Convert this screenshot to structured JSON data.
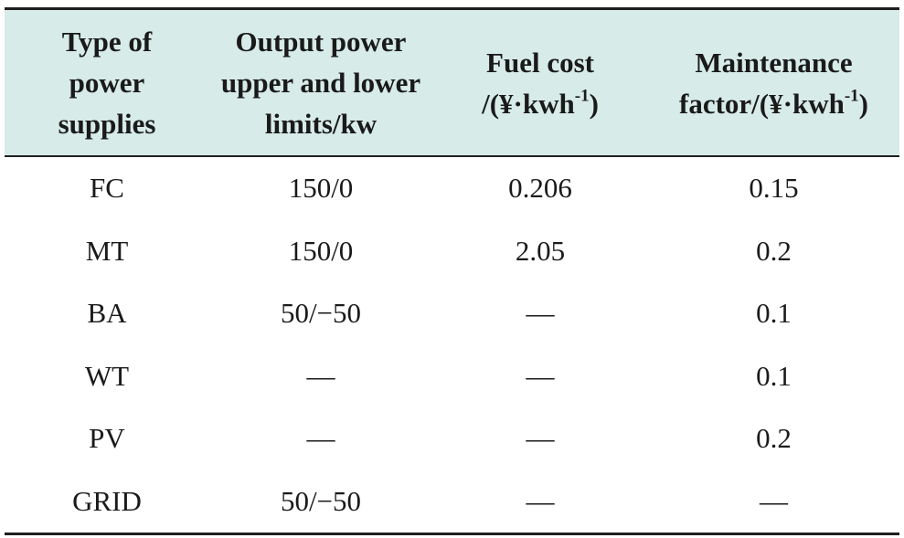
{
  "table": {
    "headers": [
      [
        "Type of",
        "power",
        "supplies"
      ],
      [
        "Output power",
        "upper and lower",
        "limits/kw"
      ],
      [
        "Fuel cost",
        "/(¥·kwh",
        "-1",
        ")"
      ],
      [
        "Maintenance",
        "factor/(¥·kwh",
        "-1",
        ")"
      ]
    ],
    "rows": [
      [
        "FC",
        "150/0",
        "0.206",
        "0.15"
      ],
      [
        "MT",
        "150/0",
        "2.05",
        "0.2"
      ],
      [
        "BA",
        "50/−50",
        "—",
        "0.1"
      ],
      [
        "WT",
        "—",
        "—",
        "0.1"
      ],
      [
        "PV",
        "—",
        "—",
        "0.2"
      ],
      [
        "GRID",
        "50/−50",
        "—",
        "—"
      ]
    ]
  },
  "colors": {
    "header_bg": "#d7ebe8",
    "rule": "#1e1e1e",
    "text": "#1a1a1a"
  }
}
